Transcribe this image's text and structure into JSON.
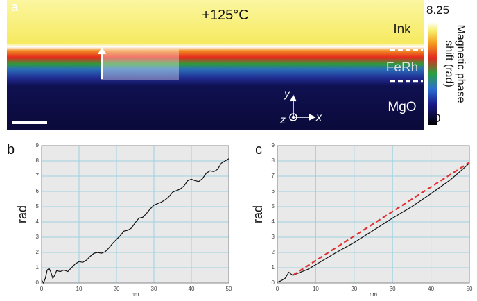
{
  "panel_a": {
    "label": "a",
    "temperature": "+125°C",
    "layers": [
      "Ink",
      "FeRh",
      "MgO"
    ],
    "axes": [
      "y",
      "z",
      "x"
    ],
    "colorbar": {
      "ticks": [
        0,
        8.25
      ],
      "label_lines": [
        "Magnetic phase",
        "shift (rad)"
      ]
    }
  },
  "chart_data": [
    {
      "type": "line",
      "panel": "b",
      "xlabel": "nm",
      "ylabel": "rad",
      "color": "#111111",
      "x": [
        0,
        0.5,
        1,
        1.5,
        2,
        2.5,
        3,
        3.5,
        4,
        5,
        6,
        7,
        8,
        9,
        10,
        11,
        12,
        13,
        14,
        15,
        16,
        17,
        18,
        19,
        20,
        21,
        22,
        23,
        24,
        25,
        26,
        27,
        28,
        29,
        30,
        31,
        32,
        33,
        34,
        35,
        36,
        37,
        38,
        39,
        40,
        41,
        42,
        43,
        44,
        45,
        46,
        47,
        48,
        49,
        50
      ],
      "values": [
        0.2,
        0,
        0.3,
        0.85,
        0.95,
        0.7,
        0.3,
        0.5,
        0.8,
        0.75,
        0.85,
        0.75,
        1.0,
        1.25,
        1.4,
        1.35,
        1.5,
        1.75,
        1.95,
        2.0,
        1.95,
        2.05,
        2.3,
        2.6,
        2.85,
        3.1,
        3.4,
        3.45,
        3.6,
        3.95,
        4.25,
        4.3,
        4.55,
        4.85,
        5.1,
        5.2,
        5.3,
        5.45,
        5.65,
        5.95,
        6.05,
        6.15,
        6.35,
        6.7,
        6.8,
        6.7,
        6.65,
        6.85,
        7.2,
        7.35,
        7.3,
        7.45,
        7.85,
        8.0,
        8.15
      ],
      "xlim": [
        0,
        50
      ],
      "ylim": [
        0,
        9
      ],
      "xticks": [
        0,
        10,
        20,
        30,
        40,
        50
      ],
      "yticks": [
        0,
        1,
        2,
        3,
        4,
        5,
        6,
        7,
        8,
        9
      ],
      "grid": true
    },
    {
      "type": "line",
      "panel": "c",
      "xlabel": "nm",
      "ylabel": "rad",
      "series": [
        {
          "color": "#111111",
          "dash": false,
          "x": [
            0,
            1,
            2,
            3,
            3.5,
            4,
            5,
            6,
            8,
            10,
            15,
            20,
            25,
            30,
            35,
            40,
            45,
            48,
            50
          ],
          "values": [
            0.05,
            0.15,
            0.3,
            0.7,
            0.6,
            0.5,
            0.6,
            0.7,
            0.9,
            1.2,
            1.95,
            2.65,
            3.45,
            4.25,
            5.0,
            5.85,
            6.75,
            7.4,
            7.85
          ]
        },
        {
          "color": "#e03030",
          "dash": true,
          "x": [
            4,
            50
          ],
          "values": [
            0.5,
            7.9
          ]
        }
      ],
      "xlim": [
        0,
        50
      ],
      "ylim": [
        0,
        9
      ],
      "xticks": [
        0,
        10,
        20,
        30,
        40,
        50
      ],
      "yticks": [
        0,
        1,
        2,
        3,
        4,
        5,
        6,
        7,
        8,
        9
      ],
      "grid": true
    }
  ]
}
